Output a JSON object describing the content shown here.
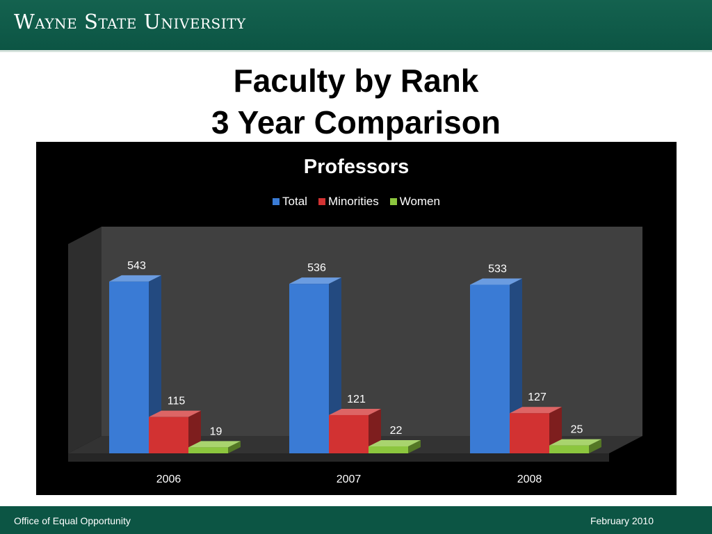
{
  "header": {
    "brand": "Wayne State University"
  },
  "title": {
    "line1": "Faculty by Rank",
    "line2": "3 Year Comparison"
  },
  "chart_data": {
    "type": "bar",
    "title": "Professors",
    "categories": [
      "2006",
      "2007",
      "2008"
    ],
    "series": [
      {
        "name": "Total",
        "values": [
          543,
          536,
          533
        ],
        "color": "#3a7bd5"
      },
      {
        "name": "Minorities",
        "values": [
          115,
          121,
          127
        ],
        "color": "#d23232"
      },
      {
        "name": "Women",
        "values": [
          19,
          22,
          25
        ],
        "color": "#8cc63e"
      }
    ],
    "ylim": [
      0,
      600
    ],
    "grid": false,
    "legend": "top-center",
    "xlabel": "",
    "ylabel": ""
  },
  "footer": {
    "left": "Office of Equal Opportunity",
    "right": "February 2010"
  }
}
